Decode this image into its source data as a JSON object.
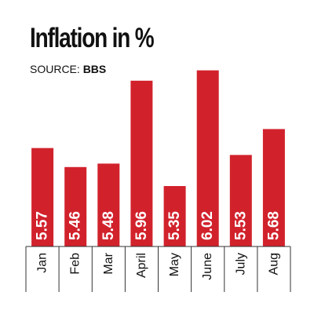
{
  "title": "Inflation in %",
  "source": {
    "label": "SOURCE:",
    "value": "BBS"
  },
  "colors": {
    "bar": "#d1222c",
    "bar_label": "#ffffff",
    "axis": "#333333"
  },
  "chart_data": {
    "type": "bar",
    "title": "Inflation in %",
    "categories": [
      "Jan",
      "Feb",
      "Mar",
      "April",
      "May",
      "June",
      "July",
      "Aug"
    ],
    "values": [
      5.57,
      5.46,
      5.48,
      5.96,
      5.35,
      6.02,
      5.53,
      5.68
    ],
    "value_labels": [
      "5.57",
      "5.46",
      "5.48",
      "5.96",
      "5.35",
      "6.02",
      "5.53",
      "5.68"
    ],
    "xlabel": "",
    "ylabel": "",
    "ylim": [
      5.0,
      6.1
    ],
    "grid": false,
    "legend": "none"
  }
}
